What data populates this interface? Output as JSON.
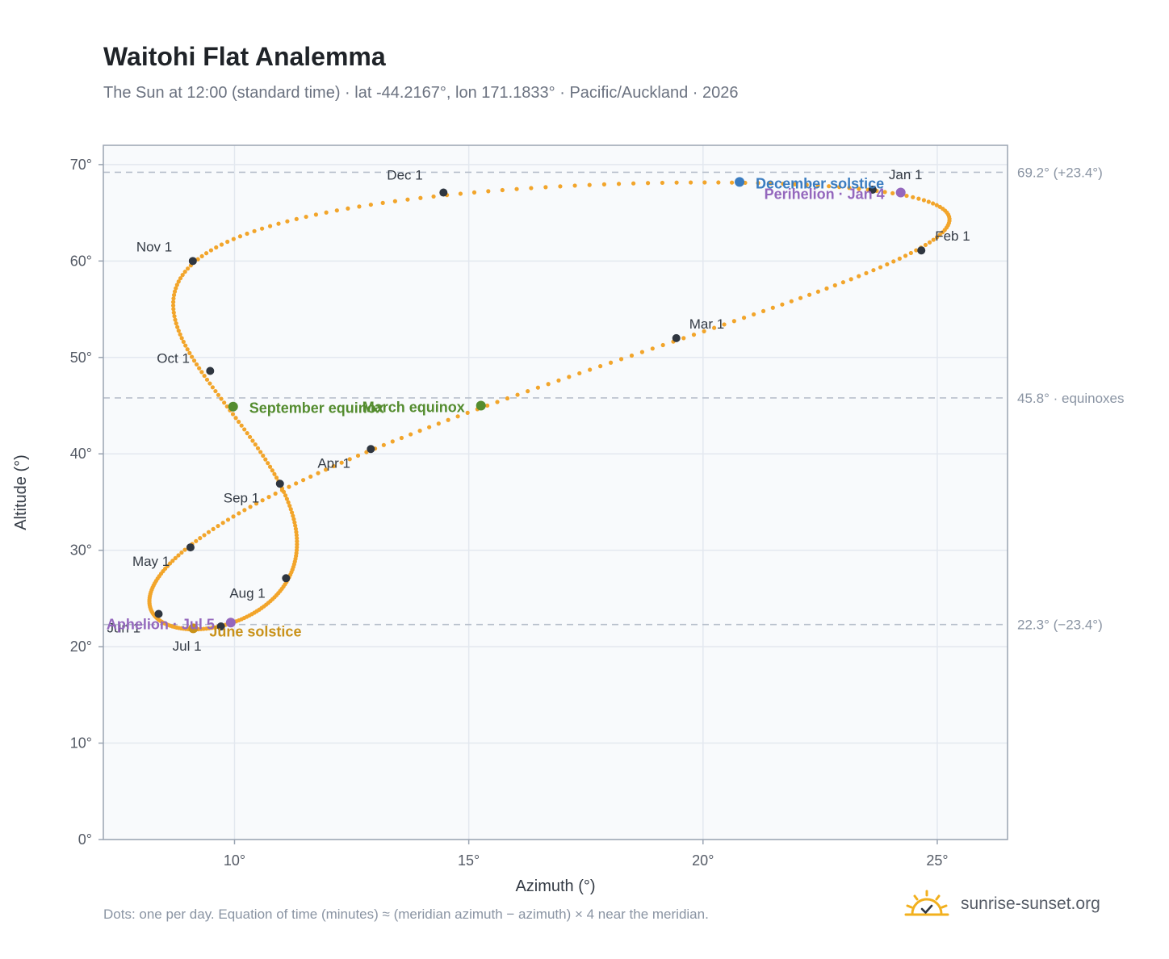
{
  "header": {
    "title": "Waitohi Flat Analemma",
    "subtitle": "The Sun at 12:00 (standard time) · lat -44.2167°, lon 171.1833° · Pacific/Auckland · 2026"
  },
  "footer": {
    "note": "Dots: one per day. Equation of time (minutes) ≈ (meridian azimuth − azimuth) × 4 near the meridian.",
    "brand": "sunrise-sunset.org"
  },
  "colors": {
    "curve": "#f2a52b",
    "month_marker": "#2f3640",
    "equinox": "#548c2f",
    "december_solstice": "#3a7cc0",
    "june_solstice": "#c9921a",
    "apsis": "#9467bd",
    "reference_line": "#b8c0cc",
    "plot_background": "#f8fafc",
    "grid": "#e3e8ef",
    "frame": "#9aa4b2"
  },
  "chart_data": {
    "type": "scatter",
    "xlabel": "Azimuth (°)",
    "ylabel": "Altitude (°)",
    "xlim": [
      7.2,
      26.5
    ],
    "ylim": [
      0,
      72
    ],
    "x_ticks": [
      10,
      15,
      20,
      25
    ],
    "x_tick_labels": [
      "10°",
      "15°",
      "20°",
      "25°"
    ],
    "y_ticks": [
      0,
      10,
      20,
      30,
      40,
      50,
      60,
      70
    ],
    "y_tick_labels": [
      "0°",
      "10°",
      "20°",
      "30°",
      "40°",
      "50°",
      "60°",
      "70°"
    ],
    "grid": true,
    "daily_dot_count": 365,
    "reference_lines": [
      {
        "y": 69.2,
        "label": "69.2° (+23.4°)"
      },
      {
        "y": 45.8,
        "label": "45.8° · equinoxes"
      },
      {
        "y": 22.3,
        "label": "22.3° (−23.4°)"
      }
    ],
    "month_markers": [
      {
        "label": "Jan 1",
        "x": 23.62,
        "y": 67.4,
        "dx": 20,
        "dy": -13,
        "anchor": "start"
      },
      {
        "label": "Feb 1",
        "x": 24.66,
        "y": 61.1,
        "dx": 17,
        "dy": -12,
        "anchor": "start"
      },
      {
        "label": "Mar 1",
        "x": 19.43,
        "y": 52.0,
        "dx": 16,
        "dy": -12,
        "anchor": "start"
      },
      {
        "label": "Apr 1",
        "x": 12.91,
        "y": 40.5,
        "dx": -66,
        "dy": 23,
        "anchor": "start"
      },
      {
        "label": "May 1",
        "x": 9.06,
        "y": 30.3,
        "dx": -72,
        "dy": 23,
        "anchor": "start"
      },
      {
        "label": "Jun 1",
        "x": 8.38,
        "y": 23.4,
        "dx": -64,
        "dy": 23,
        "anchor": "start"
      },
      {
        "label": "Jul 1",
        "x": 9.71,
        "y": 22.1,
        "dx": -60,
        "dy": 30,
        "anchor": "start"
      },
      {
        "label": "Aug 1",
        "x": 11.1,
        "y": 27.1,
        "dx": -70,
        "dy": 24,
        "anchor": "start"
      },
      {
        "label": "Sep 1",
        "x": 10.97,
        "y": 36.9,
        "dx": -70,
        "dy": 23,
        "anchor": "start"
      },
      {
        "label": "Oct 1",
        "x": 9.48,
        "y": 48.6,
        "dx": -66,
        "dy": -10,
        "anchor": "start"
      },
      {
        "label": "Nov 1",
        "x": 9.11,
        "y": 60.0,
        "dx": -70,
        "dy": -12,
        "anchor": "start"
      },
      {
        "label": "Dec 1",
        "x": 14.46,
        "y": 67.1,
        "dx": -70,
        "dy": -16,
        "anchor": "start"
      }
    ],
    "events": [
      {
        "label": "December solstice",
        "x": 20.78,
        "y": 68.2,
        "kind": "december_solstice",
        "dx": 20,
        "dy": 8,
        "anchor": "start"
      },
      {
        "label": "Perihelion · Jan 4",
        "x": 24.22,
        "y": 67.1,
        "kind": "apsis",
        "dx": -20,
        "dy": 8,
        "anchor": "end"
      },
      {
        "label": "March equinox",
        "x": 15.26,
        "y": 45.0,
        "kind": "equinox",
        "dx": -20,
        "dy": 8,
        "anchor": "end"
      },
      {
        "label": "September equinox",
        "x": 9.97,
        "y": 44.9,
        "kind": "equinox",
        "dx": 20,
        "dy": 8,
        "anchor": "start"
      },
      {
        "label": "June solstice",
        "x": 9.12,
        "y": 21.9,
        "kind": "june_solstice",
        "dx": 20,
        "dy": 10,
        "anchor": "start"
      },
      {
        "label": "Aphelion · Jul 5",
        "x": 9.92,
        "y": 22.5,
        "kind": "apsis",
        "dx": -20,
        "dy": 8,
        "anchor": "end"
      }
    ]
  }
}
